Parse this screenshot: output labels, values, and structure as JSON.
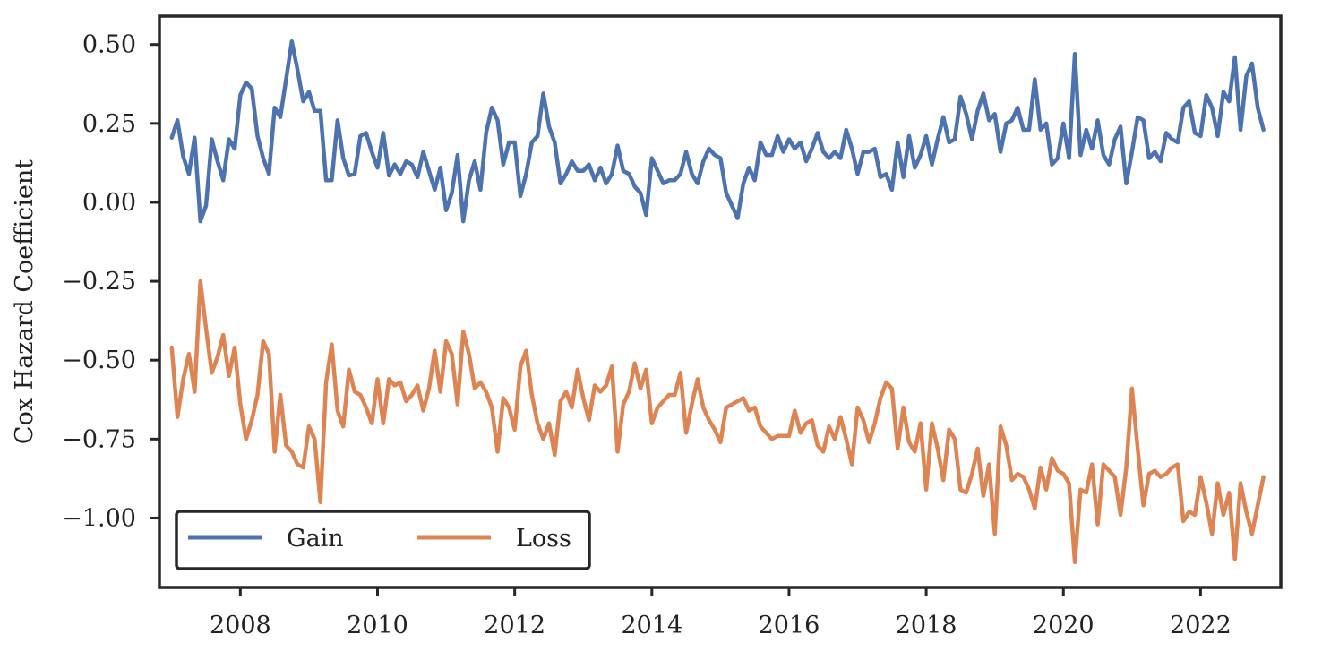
{
  "chart_data": {
    "type": "line",
    "title": "",
    "xlabel": "",
    "ylabel": "Cox Hazard Coefficient",
    "xlim": [
      2006.82,
      2023.17
    ],
    "ylim": [
      -1.22,
      0.59
    ],
    "xticks": [
      2008,
      2010,
      2012,
      2014,
      2016,
      2018,
      2020,
      2022
    ],
    "xtick_labels": [
      "2008",
      "2010",
      "2012",
      "2014",
      "2016",
      "2018",
      "2020",
      "2022"
    ],
    "yticks": [
      0.5,
      0.25,
      0.0,
      -0.25,
      -0.5,
      -0.75,
      -1.0
    ],
    "ytick_labels": [
      "0.50",
      "0.25",
      "0.00",
      "−0.25",
      "−0.50",
      "−0.75",
      "−1.00"
    ],
    "grid": false,
    "legend": {
      "placement": "lower-left",
      "columns": 2,
      "entries": [
        "Gain",
        "Loss"
      ]
    },
    "series": [
      {
        "name": "Gain",
        "color": "#4c72b0",
        "x": [
          2007.0,
          2007.083,
          2007.167,
          2007.25,
          2007.333,
          2007.417,
          2007.5,
          2007.583,
          2007.667,
          2007.75,
          2007.833,
          2007.917,
          2008.0,
          2008.083,
          2008.167,
          2008.25,
          2008.333,
          2008.417,
          2008.5,
          2008.583,
          2008.667,
          2008.75,
          2008.833,
          2008.917,
          2009.0,
          2009.083,
          2009.167,
          2009.25,
          2009.333,
          2009.417,
          2009.5,
          2009.583,
          2009.667,
          2009.75,
          2009.833,
          2009.917,
          2010.0,
          2010.083,
          2010.167,
          2010.25,
          2010.333,
          2010.417,
          2010.5,
          2010.583,
          2010.667,
          2010.75,
          2010.833,
          2010.917,
          2011.0,
          2011.083,
          2011.167,
          2011.25,
          2011.333,
          2011.417,
          2011.5,
          2011.583,
          2011.667,
          2011.75,
          2011.833,
          2011.917,
          2012.0,
          2012.083,
          2012.167,
          2012.25,
          2012.333,
          2012.417,
          2012.5,
          2012.583,
          2012.667,
          2012.75,
          2012.833,
          2012.917,
          2013.0,
          2013.083,
          2013.167,
          2013.25,
          2013.333,
          2013.417,
          2013.5,
          2013.583,
          2013.667,
          2013.75,
          2013.833,
          2013.917,
          2014.0,
          2014.083,
          2014.167,
          2014.25,
          2014.333,
          2014.417,
          2014.5,
          2014.583,
          2014.667,
          2014.75,
          2014.833,
          2014.917,
          2015.0,
          2015.083,
          2015.167,
          2015.25,
          2015.333,
          2015.417,
          2015.5,
          2015.583,
          2015.667,
          2015.75,
          2015.833,
          2015.917,
          2016.0,
          2016.083,
          2016.167,
          2016.25,
          2016.333,
          2016.417,
          2016.5,
          2016.583,
          2016.667,
          2016.75,
          2016.833,
          2016.917,
          2017.0,
          2017.083,
          2017.167,
          2017.25,
          2017.333,
          2017.417,
          2017.5,
          2017.583,
          2017.667,
          2017.75,
          2017.833,
          2017.917,
          2018.0,
          2018.083,
          2018.167,
          2018.25,
          2018.333,
          2018.417,
          2018.5,
          2018.583,
          2018.667,
          2018.75,
          2018.833,
          2018.917,
          2019.0,
          2019.083,
          2019.167,
          2019.25,
          2019.333,
          2019.417,
          2019.5,
          2019.583,
          2019.667,
          2019.75,
          2019.833,
          2019.917,
          2020.0,
          2020.083,
          2020.167,
          2020.25,
          2020.333,
          2020.417,
          2020.5,
          2020.583,
          2020.667,
          2020.75,
          2020.833,
          2020.917,
          2021.0,
          2021.083,
          2021.167,
          2021.25,
          2021.333,
          2021.417,
          2021.5,
          2021.583,
          2021.667,
          2021.75,
          2021.833,
          2021.917,
          2022.0,
          2022.083,
          2022.167,
          2022.25,
          2022.333,
          2022.417,
          2022.5,
          2022.583,
          2022.667,
          2022.75,
          2022.833,
          2022.917
        ],
        "y": [
          0.205,
          0.26,
          0.145,
          0.09,
          0.205,
          -0.06,
          -0.01,
          0.2,
          0.13,
          0.07,
          0.2,
          0.17,
          0.34,
          0.38,
          0.36,
          0.21,
          0.14,
          0.09,
          0.3,
          0.27,
          0.39,
          0.51,
          0.42,
          0.32,
          0.35,
          0.29,
          0.29,
          0.07,
          0.07,
          0.26,
          0.14,
          0.085,
          0.09,
          0.21,
          0.22,
          0.16,
          0.11,
          0.22,
          0.085,
          0.12,
          0.09,
          0.13,
          0.12,
          0.08,
          0.16,
          0.1,
          0.04,
          0.11,
          -0.025,
          0.03,
          0.15,
          -0.06,
          0.07,
          0.13,
          0.04,
          0.22,
          0.3,
          0.26,
          0.12,
          0.19,
          0.19,
          0.02,
          0.09,
          0.19,
          0.21,
          0.345,
          0.24,
          0.19,
          0.06,
          0.09,
          0.13,
          0.1,
          0.1,
          0.12,
          0.07,
          0.11,
          0.06,
          0.09,
          0.18,
          0.1,
          0.09,
          0.05,
          0.03,
          -0.04,
          0.14,
          0.1,
          0.06,
          0.07,
          0.07,
          0.09,
          0.16,
          0.09,
          0.06,
          0.13,
          0.17,
          0.15,
          0.14,
          0.03,
          -0.01,
          -0.05,
          0.06,
          0.11,
          0.07,
          0.19,
          0.15,
          0.15,
          0.21,
          0.16,
          0.2,
          0.17,
          0.19,
          0.13,
          0.17,
          0.22,
          0.16,
          0.14,
          0.16,
          0.14,
          0.23,
          0.17,
          0.09,
          0.16,
          0.16,
          0.17,
          0.08,
          0.09,
          0.04,
          0.19,
          0.08,
          0.21,
          0.11,
          0.15,
          0.21,
          0.12,
          0.2,
          0.27,
          0.19,
          0.2,
          0.335,
          0.28,
          0.2,
          0.29,
          0.345,
          0.26,
          0.28,
          0.16,
          0.25,
          0.26,
          0.3,
          0.23,
          0.23,
          0.39,
          0.23,
          0.25,
          0.12,
          0.14,
          0.25,
          0.14,
          0.47,
          0.15,
          0.23,
          0.17,
          0.26,
          0.15,
          0.12,
          0.2,
          0.24,
          0.06,
          0.16,
          0.27,
          0.26,
          0.14,
          0.16,
          0.13,
          0.22,
          0.2,
          0.19,
          0.3,
          0.32,
          0.22,
          0.21,
          0.34,
          0.3,
          0.21,
          0.35,
          0.32,
          0.46,
          0.23,
          0.4,
          0.44,
          0.3,
          0.23
        ]
      },
      {
        "name": "Loss",
        "color": "#dd8452",
        "x": [
          2007.0,
          2007.083,
          2007.167,
          2007.25,
          2007.333,
          2007.417,
          2007.5,
          2007.583,
          2007.667,
          2007.75,
          2007.833,
          2007.917,
          2008.0,
          2008.083,
          2008.167,
          2008.25,
          2008.333,
          2008.417,
          2008.5,
          2008.583,
          2008.667,
          2008.75,
          2008.833,
          2008.917,
          2009.0,
          2009.083,
          2009.167,
          2009.25,
          2009.333,
          2009.417,
          2009.5,
          2009.583,
          2009.667,
          2009.75,
          2009.833,
          2009.917,
          2010.0,
          2010.083,
          2010.167,
          2010.25,
          2010.333,
          2010.417,
          2010.5,
          2010.583,
          2010.667,
          2010.75,
          2010.833,
          2010.917,
          2011.0,
          2011.083,
          2011.167,
          2011.25,
          2011.333,
          2011.417,
          2011.5,
          2011.583,
          2011.667,
          2011.75,
          2011.833,
          2011.917,
          2012.0,
          2012.083,
          2012.167,
          2012.25,
          2012.333,
          2012.417,
          2012.5,
          2012.583,
          2012.667,
          2012.75,
          2012.833,
          2012.917,
          2013.0,
          2013.083,
          2013.167,
          2013.25,
          2013.333,
          2013.417,
          2013.5,
          2013.583,
          2013.667,
          2013.75,
          2013.833,
          2013.917,
          2014.0,
          2014.083,
          2014.167,
          2014.25,
          2014.333,
          2014.417,
          2014.5,
          2014.583,
          2014.667,
          2014.75,
          2014.833,
          2014.917,
          2015.0,
          2015.083,
          2015.167,
          2015.25,
          2015.333,
          2015.417,
          2015.5,
          2015.583,
          2015.667,
          2015.75,
          2015.833,
          2015.917,
          2016.0,
          2016.083,
          2016.167,
          2016.25,
          2016.333,
          2016.417,
          2016.5,
          2016.583,
          2016.667,
          2016.75,
          2016.833,
          2016.917,
          2017.0,
          2017.083,
          2017.167,
          2017.25,
          2017.333,
          2017.417,
          2017.5,
          2017.583,
          2017.667,
          2017.75,
          2017.833,
          2017.917,
          2018.0,
          2018.083,
          2018.167,
          2018.25,
          2018.333,
          2018.417,
          2018.5,
          2018.583,
          2018.667,
          2018.75,
          2018.833,
          2018.917,
          2019.0,
          2019.083,
          2019.167,
          2019.25,
          2019.333,
          2019.417,
          2019.5,
          2019.583,
          2019.667,
          2019.75,
          2019.833,
          2019.917,
          2020.0,
          2020.083,
          2020.167,
          2020.25,
          2020.333,
          2020.417,
          2020.5,
          2020.583,
          2020.667,
          2020.75,
          2020.833,
          2020.917,
          2021.0,
          2021.083,
          2021.167,
          2021.25,
          2021.333,
          2021.417,
          2021.5,
          2021.583,
          2021.667,
          2021.75,
          2021.833,
          2021.917,
          2022.0,
          2022.083,
          2022.167,
          2022.25,
          2022.333,
          2022.417,
          2022.5,
          2022.583,
          2022.667,
          2022.75,
          2022.833,
          2022.917
        ],
        "y": [
          -0.46,
          -0.68,
          -0.56,
          -0.48,
          -0.6,
          -0.25,
          -0.4,
          -0.54,
          -0.49,
          -0.42,
          -0.55,
          -0.46,
          -0.64,
          -0.75,
          -0.69,
          -0.61,
          -0.44,
          -0.48,
          -0.79,
          -0.61,
          -0.77,
          -0.79,
          -0.83,
          -0.84,
          -0.71,
          -0.75,
          -0.95,
          -0.57,
          -0.45,
          -0.66,
          -0.71,
          -0.53,
          -0.6,
          -0.61,
          -0.65,
          -0.7,
          -0.56,
          -0.7,
          -0.56,
          -0.58,
          -0.57,
          -0.63,
          -0.61,
          -0.58,
          -0.66,
          -0.59,
          -0.47,
          -0.6,
          -0.44,
          -0.48,
          -0.64,
          -0.41,
          -0.48,
          -0.59,
          -0.57,
          -0.6,
          -0.65,
          -0.79,
          -0.62,
          -0.65,
          -0.72,
          -0.52,
          -0.47,
          -0.61,
          -0.7,
          -0.75,
          -0.7,
          -0.8,
          -0.63,
          -0.6,
          -0.65,
          -0.53,
          -0.62,
          -0.69,
          -0.58,
          -0.6,
          -0.58,
          -0.52,
          -0.79,
          -0.64,
          -0.6,
          -0.51,
          -0.59,
          -0.53,
          -0.7,
          -0.65,
          -0.63,
          -0.61,
          -0.61,
          -0.54,
          -0.73,
          -0.64,
          -0.56,
          -0.65,
          -0.69,
          -0.72,
          -0.76,
          -0.65,
          -0.64,
          -0.63,
          -0.62,
          -0.66,
          -0.65,
          -0.71,
          -0.73,
          -0.75,
          -0.74,
          -0.74,
          -0.74,
          -0.66,
          -0.73,
          -0.7,
          -0.69,
          -0.77,
          -0.79,
          -0.71,
          -0.75,
          -0.68,
          -0.75,
          -0.83,
          -0.65,
          -0.69,
          -0.76,
          -0.7,
          -0.62,
          -0.57,
          -0.59,
          -0.78,
          -0.65,
          -0.76,
          -0.79,
          -0.7,
          -0.91,
          -0.7,
          -0.78,
          -0.88,
          -0.72,
          -0.75,
          -0.91,
          -0.92,
          -0.86,
          -0.78,
          -0.93,
          -0.83,
          -1.05,
          -0.71,
          -0.77,
          -0.88,
          -0.86,
          -0.87,
          -0.91,
          -0.97,
          -0.84,
          -0.91,
          -0.81,
          -0.85,
          -0.86,
          -0.89,
          -1.14,
          -0.91,
          -0.92,
          -0.83,
          -1.02,
          -0.83,
          -0.85,
          -0.87,
          -0.99,
          -0.84,
          -0.59,
          -0.78,
          -0.96,
          -0.86,
          -0.85,
          -0.87,
          -0.86,
          -0.84,
          -0.83,
          -1.01,
          -0.98,
          -0.99,
          -0.87,
          -0.95,
          -1.05,
          -0.89,
          -0.99,
          -0.92,
          -1.13,
          -0.89,
          -0.98,
          -1.05,
          -0.96,
          -0.87
        ]
      }
    ]
  }
}
